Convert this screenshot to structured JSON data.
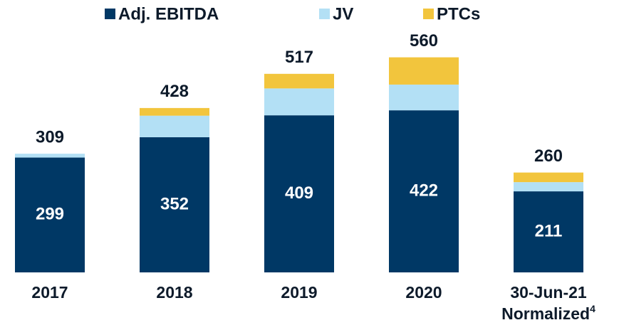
{
  "chart_data": {
    "type": "stacked_bar",
    "categories": [
      "2017",
      "2018",
      "2019",
      "2020",
      "30-Jun-21 Normalized"
    ],
    "footnote": "4",
    "series": [
      {
        "name": "Adj. EBITDA",
        "color": "#003865",
        "values": [
          299,
          352,
          409,
          422,
          211
        ]
      },
      {
        "name": "JV",
        "color": "#b3e0f5",
        "values": [
          10,
          56,
          70,
          67,
          24
        ]
      },
      {
        "name": "PTCs",
        "color": "#f2c53d",
        "values": [
          0,
          20,
          38,
          71,
          25
        ]
      }
    ],
    "totals": [
      309,
      428,
      517,
      560,
      260
    ],
    "ylim": [
      0,
      700
    ],
    "grid": false,
    "legend": "top"
  }
}
